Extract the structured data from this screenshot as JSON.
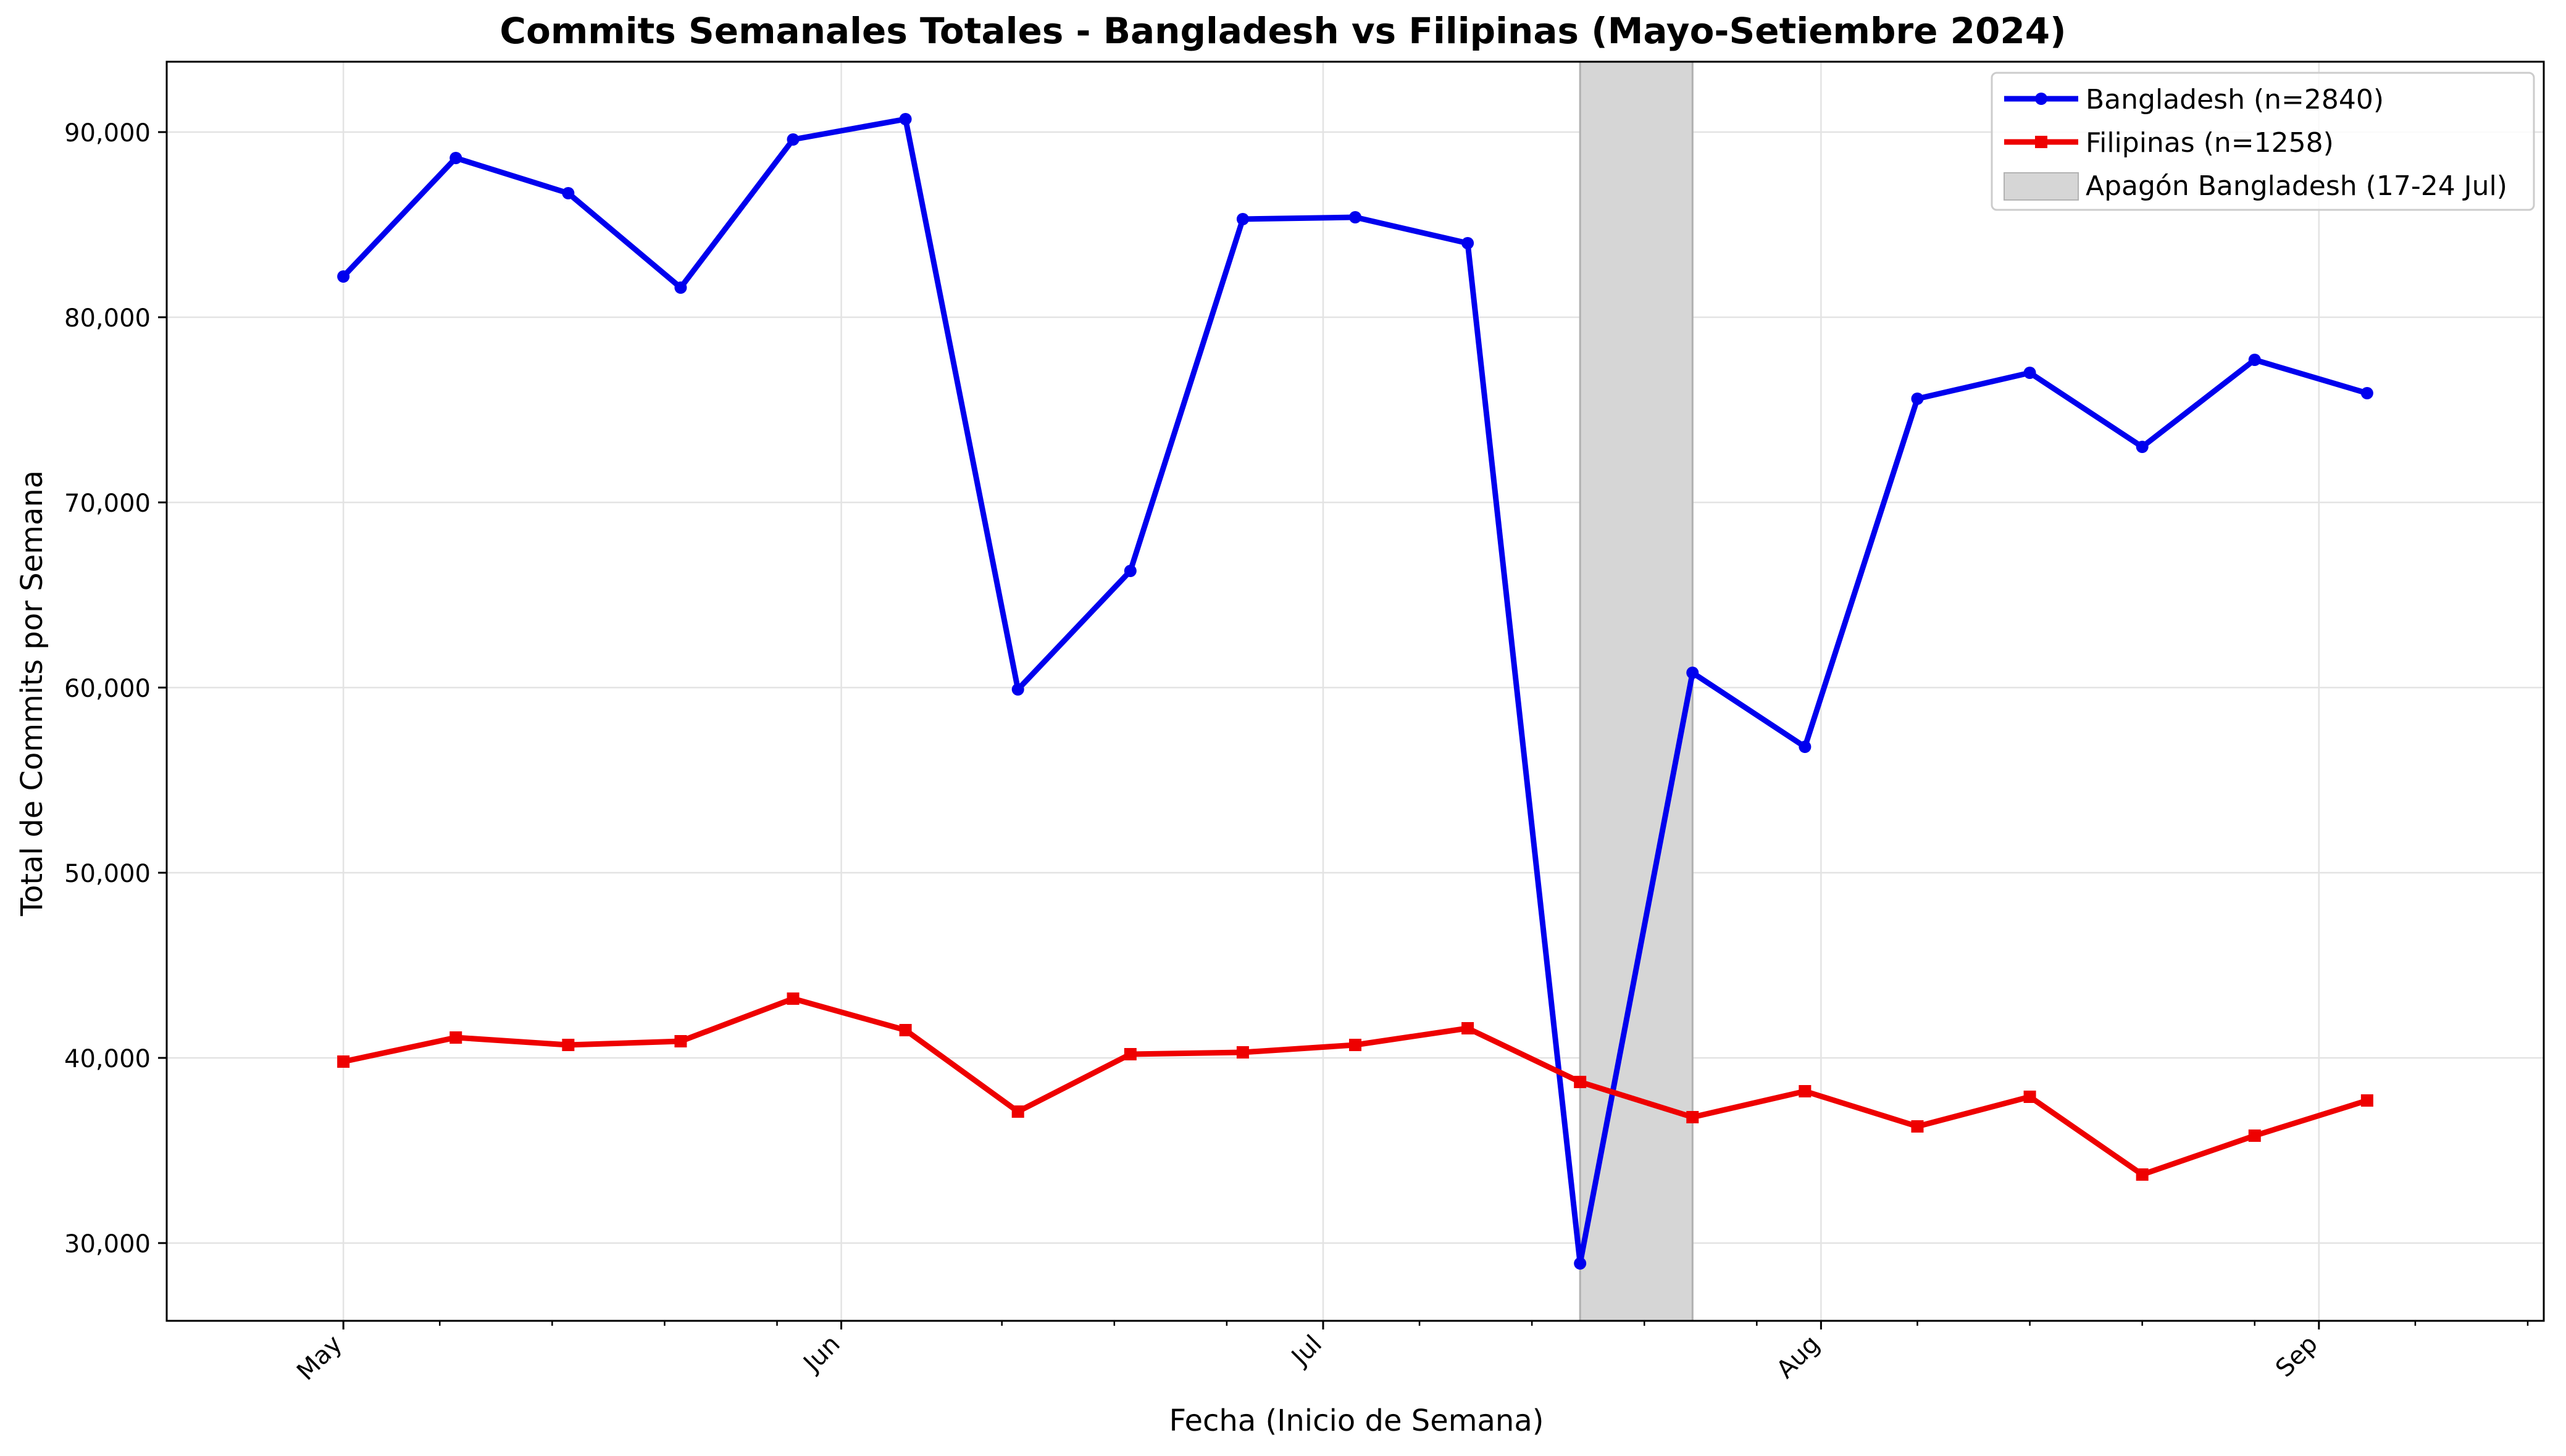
{
  "chart_data": {
    "type": "line",
    "title": "Commits Semanales Totales - Bangladesh vs Filipinas (Mayo-Setiembre 2024)",
    "xlabel": "Fecha (Inicio de Semana)",
    "ylabel": "Total de Commits por Semana",
    "xlim": [
      "2024-04-20",
      "2024-09-15"
    ],
    "ylim": [
      25800,
      93800
    ],
    "x_ticks": [
      {
        "date": "2024-05-01",
        "label": "May"
      },
      {
        "date": "2024-06-01",
        "label": "Jun"
      },
      {
        "date": "2024-07-01",
        "label": "Jul"
      },
      {
        "date": "2024-08-01",
        "label": "Aug"
      },
      {
        "date": "2024-09-01",
        "label": "Sep"
      }
    ],
    "x_minor_ticks": [
      "2024-05-07",
      "2024-05-14",
      "2024-05-21",
      "2024-05-28",
      "2024-06-11",
      "2024-06-18",
      "2024-06-25",
      "2024-07-07",
      "2024-07-14",
      "2024-07-21",
      "2024-07-28",
      "2024-08-07",
      "2024-08-14",
      "2024-08-21",
      "2024-08-28",
      "2024-09-07",
      "2024-09-14"
    ],
    "y_ticks": [
      {
        "value": 30000,
        "label": "30,000"
      },
      {
        "value": 40000,
        "label": "40,000"
      },
      {
        "value": 50000,
        "label": "50,000"
      },
      {
        "value": 60000,
        "label": "60,000"
      },
      {
        "value": 70000,
        "label": "70,000"
      },
      {
        "value": 80000,
        "label": "80,000"
      },
      {
        "value": 90000,
        "label": "90,000"
      }
    ],
    "grid": true,
    "legend_position": "top-right",
    "x": [
      "2024-05-01",
      "2024-05-08",
      "2024-05-15",
      "2024-05-22",
      "2024-05-29",
      "2024-06-05",
      "2024-06-12",
      "2024-06-19",
      "2024-06-26",
      "2024-07-03",
      "2024-07-10",
      "2024-07-17",
      "2024-07-24",
      "2024-07-31",
      "2024-08-07",
      "2024-08-14",
      "2024-08-21",
      "2024-08-28",
      "2024-09-04"
    ],
    "series": [
      {
        "name": "Bangladesh (n=2840)",
        "color": "#0000ee",
        "marker": "circle",
        "values": [
          82200,
          88600,
          86700,
          81600,
          89600,
          90700,
          59900,
          66300,
          85300,
          85400,
          84000,
          28900,
          60800,
          56800,
          75600,
          77000,
          73000,
          77700,
          75900
        ]
      },
      {
        "name": "Filipinas (n=1258)",
        "color": "#ee0000",
        "marker": "square",
        "values": [
          39800,
          41100,
          40700,
          40900,
          43200,
          41500,
          37100,
          40200,
          40300,
          40700,
          41600,
          38700,
          36800,
          38200,
          36300,
          37900,
          33700,
          35800,
          37700
        ]
      }
    ],
    "shaded_regions": [
      {
        "name": "Apagón Bangladesh (17-24 Jul)",
        "start": "2024-07-17",
        "end": "2024-07-24",
        "color": "#d6d6d6"
      }
    ]
  }
}
